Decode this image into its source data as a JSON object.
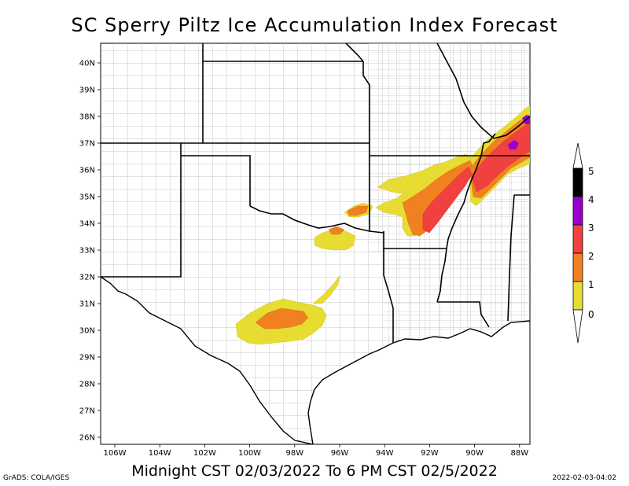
{
  "title": "SC Sperry Piltz Ice Accumulation Index Forecast",
  "subtitle": "Midnight CST 02/03/2022 To 6 PM CST 02/5/2022",
  "footer_left": "GrADS: COLA/IGES",
  "footer_right": "2022-02-03-04:02",
  "map": {
    "lat_labels": [
      "40N",
      "39N",
      "38N",
      "37N",
      "36N",
      "35N",
      "34N",
      "33N",
      "32N",
      "31N",
      "30N",
      "29N",
      "28N",
      "27N",
      "26N"
    ],
    "lon_labels": [
      "106W",
      "104W",
      "102W",
      "100W",
      "98W",
      "96W",
      "94W",
      "92W",
      "90W",
      "88W"
    ]
  },
  "legend": {
    "labels": [
      "5",
      "4",
      "3",
      "2",
      "1",
      "0"
    ],
    "colors": [
      "#000000",
      "#9900cc",
      "#f04040",
      "#f08020",
      "#e6dc32",
      "#ffffff"
    ]
  },
  "colors": {
    "level0": "#e6dc32",
    "level1": "#f08020",
    "level2": "#f04040",
    "level3": "#9900cc",
    "county": "#aaaaaa",
    "state": "#000000"
  }
}
